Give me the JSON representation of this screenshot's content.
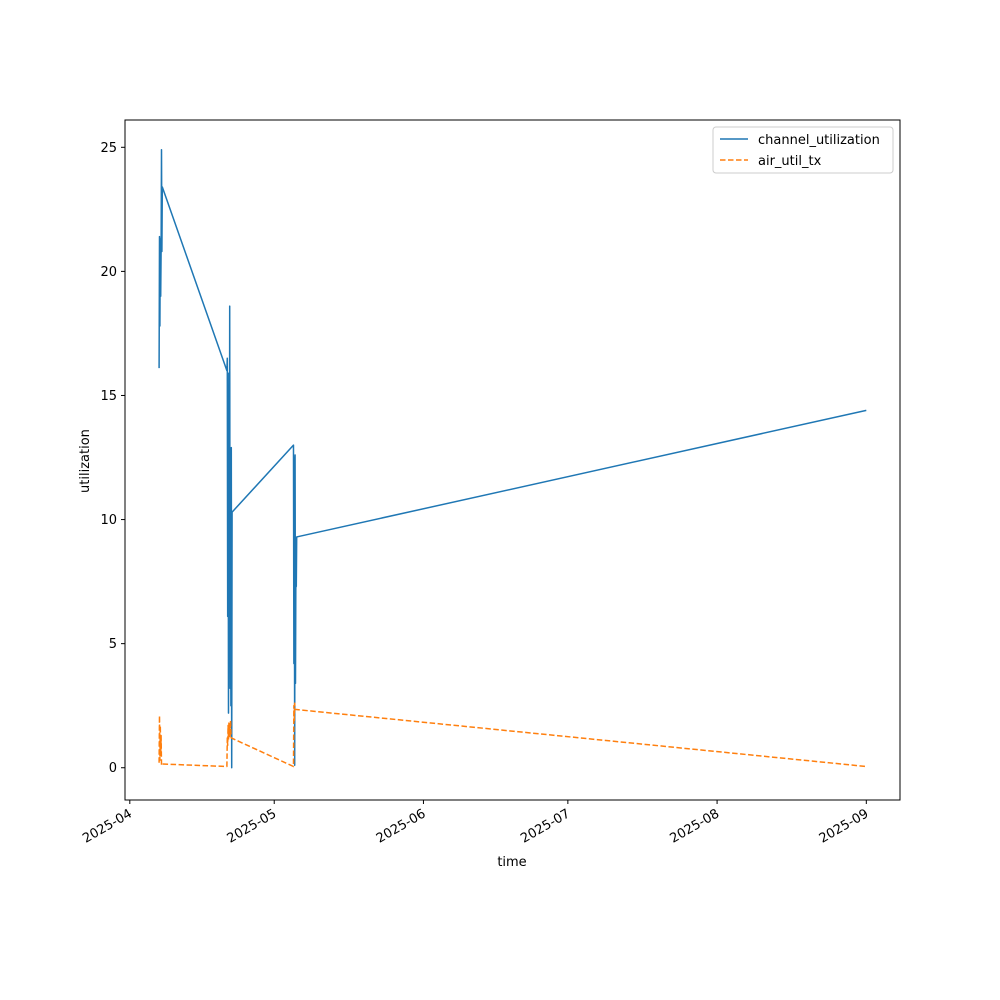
{
  "chart_data": {
    "type": "line",
    "xlabel": "time",
    "ylabel": "utilization",
    "x_type": "date",
    "xlim": [
      "2025-03-31",
      "2025-09-08"
    ],
    "ylim": [
      -1.3,
      26.1
    ],
    "grid": false,
    "legend_position": "top-right",
    "x_ticks": [
      "2025-04-01",
      "2025-05-01",
      "2025-06-01",
      "2025-07-01",
      "2025-08-01",
      "2025-09-01"
    ],
    "x_tick_labels": [
      "2025-04",
      "2025-05",
      "2025-06",
      "2025-07",
      "2025-08",
      "2025-09"
    ],
    "y_ticks": [
      0,
      5,
      10,
      15,
      20,
      25
    ],
    "y_tick_labels": [
      "0",
      "5",
      "10",
      "15",
      "20",
      "25"
    ],
    "series": [
      {
        "name": "channel_utilization",
        "color": "#1f77b4",
        "style": "solid",
        "points": [
          [
            "2025-04-07T02:00",
            16.1
          ],
          [
            "2025-04-07T04:00",
            21.4
          ],
          [
            "2025-04-07T06:00",
            17.8
          ],
          [
            "2025-04-07T08:00",
            21.3
          ],
          [
            "2025-04-07T10:00",
            19.0
          ],
          [
            "2025-04-07T12:00",
            20.8
          ],
          [
            "2025-04-07T14:00",
            24.9
          ],
          [
            "2025-04-07T16:00",
            20.8
          ],
          [
            "2025-04-07T18:00",
            23.4
          ],
          [
            "2025-04-21T04:00",
            16.0
          ],
          [
            "2025-04-21T06:00",
            16.5
          ],
          [
            "2025-04-21T08:00",
            6.1
          ],
          [
            "2025-04-21T10:00",
            15.9
          ],
          [
            "2025-04-21T12:00",
            2.2
          ],
          [
            "2025-04-21T14:00",
            11.7
          ],
          [
            "2025-04-21T16:00",
            4.3
          ],
          [
            "2025-04-21T18:00",
            18.6
          ],
          [
            "2025-04-21T20:00",
            3.2
          ],
          [
            "2025-04-21T22:00",
            10.1
          ],
          [
            "2025-04-22T00:00",
            2.5
          ],
          [
            "2025-04-22T02:00",
            12.9
          ],
          [
            "2025-04-22T04:00",
            0.0
          ],
          [
            "2025-04-22T06:00",
            10.3
          ],
          [
            "2025-05-05T00:00",
            13.0
          ],
          [
            "2025-05-05T02:00",
            4.2
          ],
          [
            "2025-05-05T04:00",
            12.5
          ],
          [
            "2025-05-05T06:00",
            0.1
          ],
          [
            "2025-05-05T08:00",
            12.6
          ],
          [
            "2025-05-05T10:00",
            3.4
          ],
          [
            "2025-05-05T12:00",
            8.1
          ],
          [
            "2025-05-05T14:00",
            7.3
          ],
          [
            "2025-05-05T16:00",
            9.3
          ],
          [
            "2025-09-01T00:00",
            14.4
          ]
        ]
      },
      {
        "name": "air_util_tx",
        "color": "#ff7f0e",
        "style": "dashed",
        "points": [
          [
            "2025-04-07T02:00",
            0.2
          ],
          [
            "2025-04-07T04:00",
            2.1
          ],
          [
            "2025-04-07T06:00",
            0.3
          ],
          [
            "2025-04-07T08:00",
            1.7
          ],
          [
            "2025-04-07T10:00",
            0.5
          ],
          [
            "2025-04-07T12:00",
            1.3
          ],
          [
            "2025-04-07T14:00",
            0.1
          ],
          [
            "2025-04-07T16:00",
            0.15
          ],
          [
            "2025-04-21T04:00",
            0.05
          ],
          [
            "2025-04-21T06:00",
            1.2
          ],
          [
            "2025-04-21T08:00",
            0.9
          ],
          [
            "2025-04-21T10:00",
            1.7
          ],
          [
            "2025-04-21T12:00",
            1.1
          ],
          [
            "2025-04-21T14:00",
            1.8
          ],
          [
            "2025-04-21T16:00",
            1.3
          ],
          [
            "2025-04-21T18:00",
            1.6
          ],
          [
            "2025-04-21T20:00",
            1.2
          ],
          [
            "2025-04-21T22:00",
            1.9
          ],
          [
            "2025-04-22T00:00",
            1.4
          ],
          [
            "2025-04-22T02:00",
            1.2
          ],
          [
            "2025-05-05T00:00",
            0.05
          ],
          [
            "2025-05-05T02:00",
            2.5
          ],
          [
            "2025-05-05T04:00",
            1.9
          ],
          [
            "2025-05-05T06:00",
            2.6
          ],
          [
            "2025-05-05T08:00",
            2.35
          ],
          [
            "2025-09-01T00:00",
            0.05
          ]
        ]
      }
    ]
  }
}
